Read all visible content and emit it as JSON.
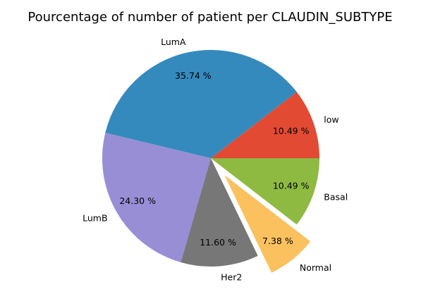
{
  "chart_data": {
    "type": "pie",
    "title": "Pourcentage of number of patient per CLAUDIN_SUBTYPE",
    "slices": [
      {
        "label": "low",
        "value": 10.49,
        "pct_label": "10.49 %",
        "color": "#e24a33",
        "exploded": false
      },
      {
        "label": "LumA",
        "value": 35.74,
        "pct_label": "35.74 %",
        "color": "#348abd",
        "exploded": false
      },
      {
        "label": "LumB",
        "value": 24.3,
        "pct_label": "24.30 %",
        "color": "#988ed5",
        "exploded": false
      },
      {
        "label": "Her2",
        "value": 11.6,
        "pct_label": "11.60 %",
        "color": "#777777",
        "exploded": false
      },
      {
        "label": "Normal",
        "value": 7.38,
        "pct_label": "7.38 %",
        "color": "#fbc15e",
        "exploded": true
      },
      {
        "label": "Basal",
        "value": 10.49,
        "pct_label": "10.49 %",
        "color": "#8eba42",
        "exploded": false
      }
    ],
    "start_angle_deg": 0,
    "direction": "counterclockwise",
    "legend": "none"
  }
}
